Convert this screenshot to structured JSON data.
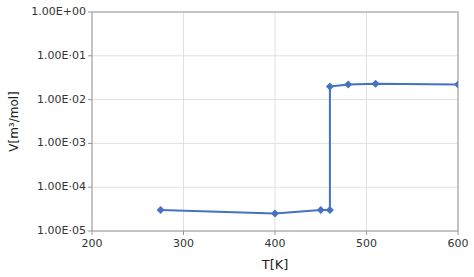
{
  "chart_data": {
    "type": "line",
    "x": [
      275,
      400,
      450,
      460,
      460,
      480,
      510,
      600
    ],
    "values": [
      3e-05,
      2.5e-05,
      3e-05,
      3e-05,
      0.02,
      0.022,
      0.023,
      0.022
    ],
    "xlabel": "T[K]",
    "ylabel": "V[m³/mol]",
    "xlim": [
      200,
      600
    ],
    "ylim": [
      1e-05,
      1
    ],
    "xticks": [
      200,
      300,
      400,
      500,
      600
    ],
    "yticks": [
      {
        "value": 1e-05,
        "label": "1.00E·05"
      },
      {
        "value": 0.0001,
        "label": "1.00E·04"
      },
      {
        "value": 0.001,
        "label": "1.00E·03"
      },
      {
        "value": 0.01,
        "label": "1.00E·02"
      },
      {
        "value": 0.1,
        "label": "1.00E·01"
      },
      {
        "value": 1,
        "label": "1.00E+00"
      }
    ],
    "log": "y",
    "grid": true,
    "color": "#4472C4",
    "marker": "diamond"
  }
}
